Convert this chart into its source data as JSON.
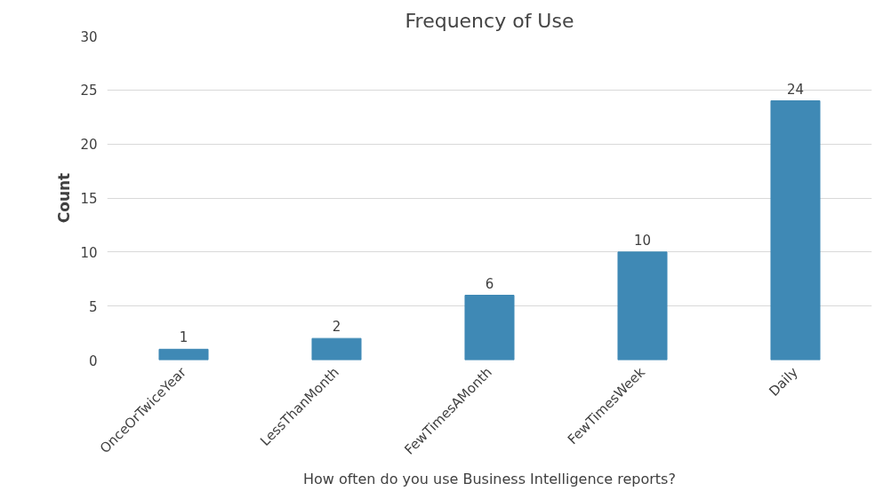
{
  "chart_data": {
    "type": "bar",
    "title": "Frequency of Use",
    "xlabel": "How often do you use Business Intelligence reports?",
    "ylabel": "Count",
    "categories": [
      "OnceOrTwiceYear",
      "LessThanMonth",
      "FewTimesAMonth",
      "FewTimesWeek",
      "Daily"
    ],
    "values": [
      1,
      2,
      6,
      10,
      24
    ],
    "color": "#3f89b5",
    "ylim": [
      0,
      30
    ],
    "yticks": [
      0,
      5,
      10,
      15,
      20,
      25,
      30
    ],
    "grid": "y",
    "data_labels": true
  }
}
